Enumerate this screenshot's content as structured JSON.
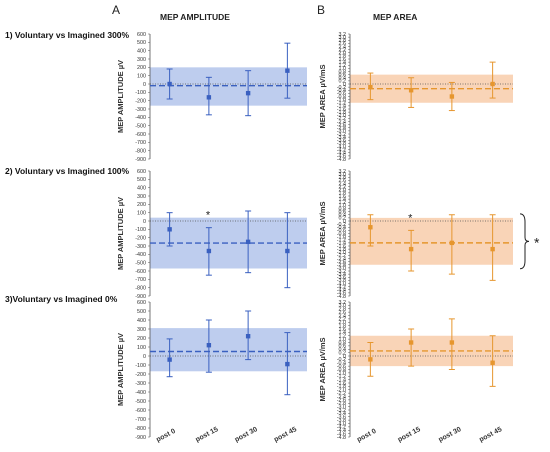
{
  "panel_labels": {
    "a": "A",
    "b": "B"
  },
  "column_titles": {
    "amplitude": "MEP AMPLITUDE",
    "area": "MEP AREA"
  },
  "row_titles": [
    "1) Voluntary vs Imagined 300%",
    "2) Voluntary vs Imagined 100%",
    "3)Voluntary vs Imagined 0%"
  ],
  "y_labels": {
    "amplitude": "MEP AMPLITUDE  µV",
    "area_rows": [
      "MEP AREA  µV/mS",
      "MEP AREA  µV/mS",
      "MEP AREA  µV/mS"
    ]
  },
  "x_categories": [
    "post 0",
    "post 15",
    "post 30",
    "post 45"
  ],
  "significance_marker": "*",
  "colors": {
    "amplitude": "#3a60c0",
    "amplitude_band": "#aec1ea",
    "area": "#e6962e",
    "area_band": "#f8ccaa",
    "zero_line": "#555555"
  },
  "chart_data": [
    {
      "type": "scatter",
      "panel": "A",
      "row": 1,
      "title": "MEP AMPLITUDE",
      "ylabel": "MEP AMPLITUDE  µV",
      "categories": [
        "post 0",
        "post 15",
        "post 30",
        "post 45"
      ],
      "values": [
        0,
        -160,
        -110,
        160
      ],
      "error": [
        [
          -180,
          180
        ],
        [
          -370,
          80
        ],
        [
          -380,
          160
        ],
        [
          -170,
          490
        ]
      ],
      "mean_line": -20,
      "band": [
        -260,
        200
      ],
      "ylim": [
        -900,
        600
      ],
      "ytick_step": 100,
      "annotations": []
    },
    {
      "type": "scatter",
      "panel": "A",
      "row": 2,
      "title": "MEP AMPLITUDE",
      "ylabel": "MEP AMPLITUDE  µV",
      "categories": [
        "post 0",
        "post 15",
        "post 30",
        "post 45"
      ],
      "values": [
        -100,
        -360,
        -250,
        -360
      ],
      "error": [
        [
          -300,
          100
        ],
        [
          -650,
          -80
        ],
        [
          -620,
          120
        ],
        [
          -800,
          100
        ]
      ],
      "mean_line": -265,
      "band": [
        -570,
        40
      ],
      "ylim": [
        -900,
        600
      ],
      "ytick_step": 100,
      "annotations": [
        {
          "category": "post 15",
          "text": "*"
        }
      ]
    },
    {
      "type": "scatter",
      "panel": "A",
      "row": 3,
      "title": "MEP AMPLITUDE",
      "ylabel": "MEP AMPLITUDE  µV",
      "categories": [
        "post 0",
        "post 15",
        "post 30",
        "post 45"
      ],
      "values": [
        -40,
        120,
        220,
        -90
      ],
      "error": [
        [
          -230,
          190
        ],
        [
          -180,
          400
        ],
        [
          -40,
          500
        ],
        [
          -430,
          260
        ]
      ],
      "mean_line": 50,
      "band": [
        -170,
        310
      ],
      "ylim": [
        -900,
        600
      ],
      "ytick_step": 100,
      "annotations": []
    },
    {
      "type": "scatter",
      "panel": "B",
      "row": 1,
      "title": "MEP AREA",
      "ylabel": "MEP AREA  µV/mS",
      "categories": [
        "post 0",
        "post 15",
        "post 30",
        "post 45"
      ],
      "values": [
        -0.2,
        -0.4,
        -0.8,
        0.0
      ],
      "error": [
        [
          -1.0,
          0.7
        ],
        [
          -1.5,
          0.4
        ],
        [
          -1.7,
          0.1
        ],
        [
          -0.9,
          1.4
        ]
      ],
      "mean_line": -0.3,
      "band": [
        -1.2,
        0.6
      ],
      "ylim": [
        -4.8,
        3.2
      ],
      "ytick_step": 0.2,
      "annotations": []
    },
    {
      "type": "scatter",
      "panel": "B",
      "row": 2,
      "title": "MEP AREA",
      "ylabel": "MEP AREA  µV/mS",
      "categories": [
        "post 0",
        "post 15",
        "post 30",
        "post 45"
      ],
      "values": [
        -0.4,
        -1.8,
        -1.4,
        -1.8
      ],
      "error": [
        [
          -1.6,
          0.4
        ],
        [
          -3.2,
          -0.6
        ],
        [
          -3.4,
          0.4
        ],
        [
          -3.8,
          0.4
        ]
      ],
      "mean_line": -1.4,
      "band": [
        -2.8,
        0.2
      ],
      "ylim": [
        -4.8,
        3.2
      ],
      "ytick_step": 0.2,
      "annotations": [
        {
          "category": "post 15",
          "text": "*"
        },
        {
          "category": "bracket",
          "text": "*"
        }
      ]
    },
    {
      "type": "scatter",
      "panel": "B",
      "row": 3,
      "title": "MEP AREA",
      "ylabel": "MEP AREA  µV/mS",
      "categories": [
        "post 0",
        "post 15",
        "post 30",
        "post 45"
      ],
      "values": [
        -0.2,
        0.8,
        0.8,
        -0.4
      ],
      "error": [
        [
          -1.2,
          0.8
        ],
        [
          -0.6,
          1.6
        ],
        [
          -0.8,
          2.2
        ],
        [
          -1.8,
          1.2
        ]
      ],
      "mean_line": 0.3,
      "band": [
        -0.6,
        1.2
      ],
      "ylim": [
        -4.8,
        3.2
      ],
      "ytick_step": 0.2,
      "annotations": []
    }
  ]
}
